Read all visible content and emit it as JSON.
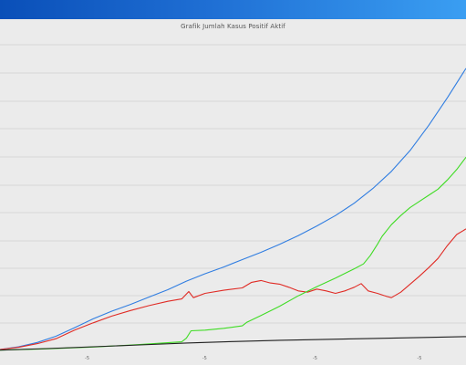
{
  "window": {
    "accent": "#1f6fd4"
  },
  "chart_data": {
    "type": "line",
    "title": "Grafik Jumlah Kasus Positif Aktif",
    "grid": true,
    "background": "#ebebeb",
    "xlim": [
      0,
      100
    ],
    "ylim": [
      0,
      100
    ],
    "x_ticks": [
      {
        "x": 18.7,
        "label": "-5"
      },
      {
        "x": 43.9,
        "label": "-5"
      },
      {
        "x": 67.6,
        "label": "-5"
      },
      {
        "x": 90.0,
        "label": "-5"
      }
    ],
    "series": [
      {
        "color": "#2f7de1",
        "points": [
          [
            0,
            0.3
          ],
          [
            4,
            1.2
          ],
          [
            8,
            2.6
          ],
          [
            12,
            4.6
          ],
          [
            16,
            7.4
          ],
          [
            20,
            10.3
          ],
          [
            24,
            12.8
          ],
          [
            28,
            15.0
          ],
          [
            32,
            17.4
          ],
          [
            36,
            19.8
          ],
          [
            40,
            22.6
          ],
          [
            44,
            25.0
          ],
          [
            48,
            27.2
          ],
          [
            52,
            29.6
          ],
          [
            56,
            32.0
          ],
          [
            60,
            34.6
          ],
          [
            64,
            37.4
          ],
          [
            68,
            40.6
          ],
          [
            72,
            44.0
          ],
          [
            76,
            48.0
          ],
          [
            80,
            52.8
          ],
          [
            84,
            58.4
          ],
          [
            88,
            65.2
          ],
          [
            92,
            73.4
          ],
          [
            96,
            82.4
          ],
          [
            100,
            92.0
          ]
        ]
      },
      {
        "color": "#e02b25",
        "points": [
          [
            0,
            0.3
          ],
          [
            4,
            1.0
          ],
          [
            8,
            2.2
          ],
          [
            12,
            3.8
          ],
          [
            16,
            6.6
          ],
          [
            20,
            9.0
          ],
          [
            24,
            11.2
          ],
          [
            28,
            13.0
          ],
          [
            32,
            14.6
          ],
          [
            36,
            16.0
          ],
          [
            39,
            16.8
          ],
          [
            40.5,
            19.2
          ],
          [
            41.5,
            17.2
          ],
          [
            44,
            18.6
          ],
          [
            48,
            19.6
          ],
          [
            52,
            20.4
          ],
          [
            54,
            22.2
          ],
          [
            56,
            22.8
          ],
          [
            58,
            22.0
          ],
          [
            60,
            21.6
          ],
          [
            62,
            20.6
          ],
          [
            64,
            19.4
          ],
          [
            66,
            19.0
          ],
          [
            68,
            20.0
          ],
          [
            70,
            19.4
          ],
          [
            72,
            18.6
          ],
          [
            74,
            19.4
          ],
          [
            76,
            20.6
          ],
          [
            77.5,
            21.8
          ],
          [
            79,
            19.4
          ],
          [
            81,
            18.6
          ],
          [
            83,
            17.6
          ],
          [
            84,
            17.2
          ],
          [
            86,
            19.0
          ],
          [
            88,
            21.6
          ],
          [
            90,
            24.2
          ],
          [
            92,
            27.0
          ],
          [
            94,
            30.0
          ],
          [
            96,
            34.2
          ],
          [
            98,
            37.8
          ],
          [
            100,
            39.6
          ]
        ]
      },
      {
        "color": "#3fdc24",
        "points": [
          [
            0,
            0.1
          ],
          [
            10,
            0.5
          ],
          [
            20,
            1.1
          ],
          [
            30,
            1.9
          ],
          [
            39,
            2.8
          ],
          [
            40,
            4.0
          ],
          [
            41,
            6.4
          ],
          [
            44,
            6.6
          ],
          [
            48,
            7.2
          ],
          [
            52,
            8.0
          ],
          [
            53,
            9.2
          ],
          [
            56,
            11.4
          ],
          [
            60,
            14.4
          ],
          [
            64,
            17.8
          ],
          [
            68,
            20.8
          ],
          [
            72,
            23.6
          ],
          [
            76,
            26.6
          ],
          [
            78,
            28.2
          ],
          [
            79.5,
            31.0
          ],
          [
            81,
            34.6
          ],
          [
            82,
            37.2
          ],
          [
            84,
            41.0
          ],
          [
            86,
            44.0
          ],
          [
            88,
            46.6
          ],
          [
            90,
            48.6
          ],
          [
            92,
            50.6
          ],
          [
            94,
            52.6
          ],
          [
            96,
            55.6
          ],
          [
            98,
            59.0
          ],
          [
            100,
            63.0
          ]
        ]
      },
      {
        "color": "#202020",
        "points": [
          [
            0,
            0.1
          ],
          [
            10,
            0.6
          ],
          [
            20,
            1.2
          ],
          [
            30,
            1.8
          ],
          [
            40,
            2.4
          ],
          [
            50,
            2.9
          ],
          [
            60,
            3.3
          ],
          [
            70,
            3.6
          ],
          [
            80,
            3.9
          ],
          [
            90,
            4.2
          ],
          [
            100,
            4.5
          ]
        ]
      }
    ]
  }
}
